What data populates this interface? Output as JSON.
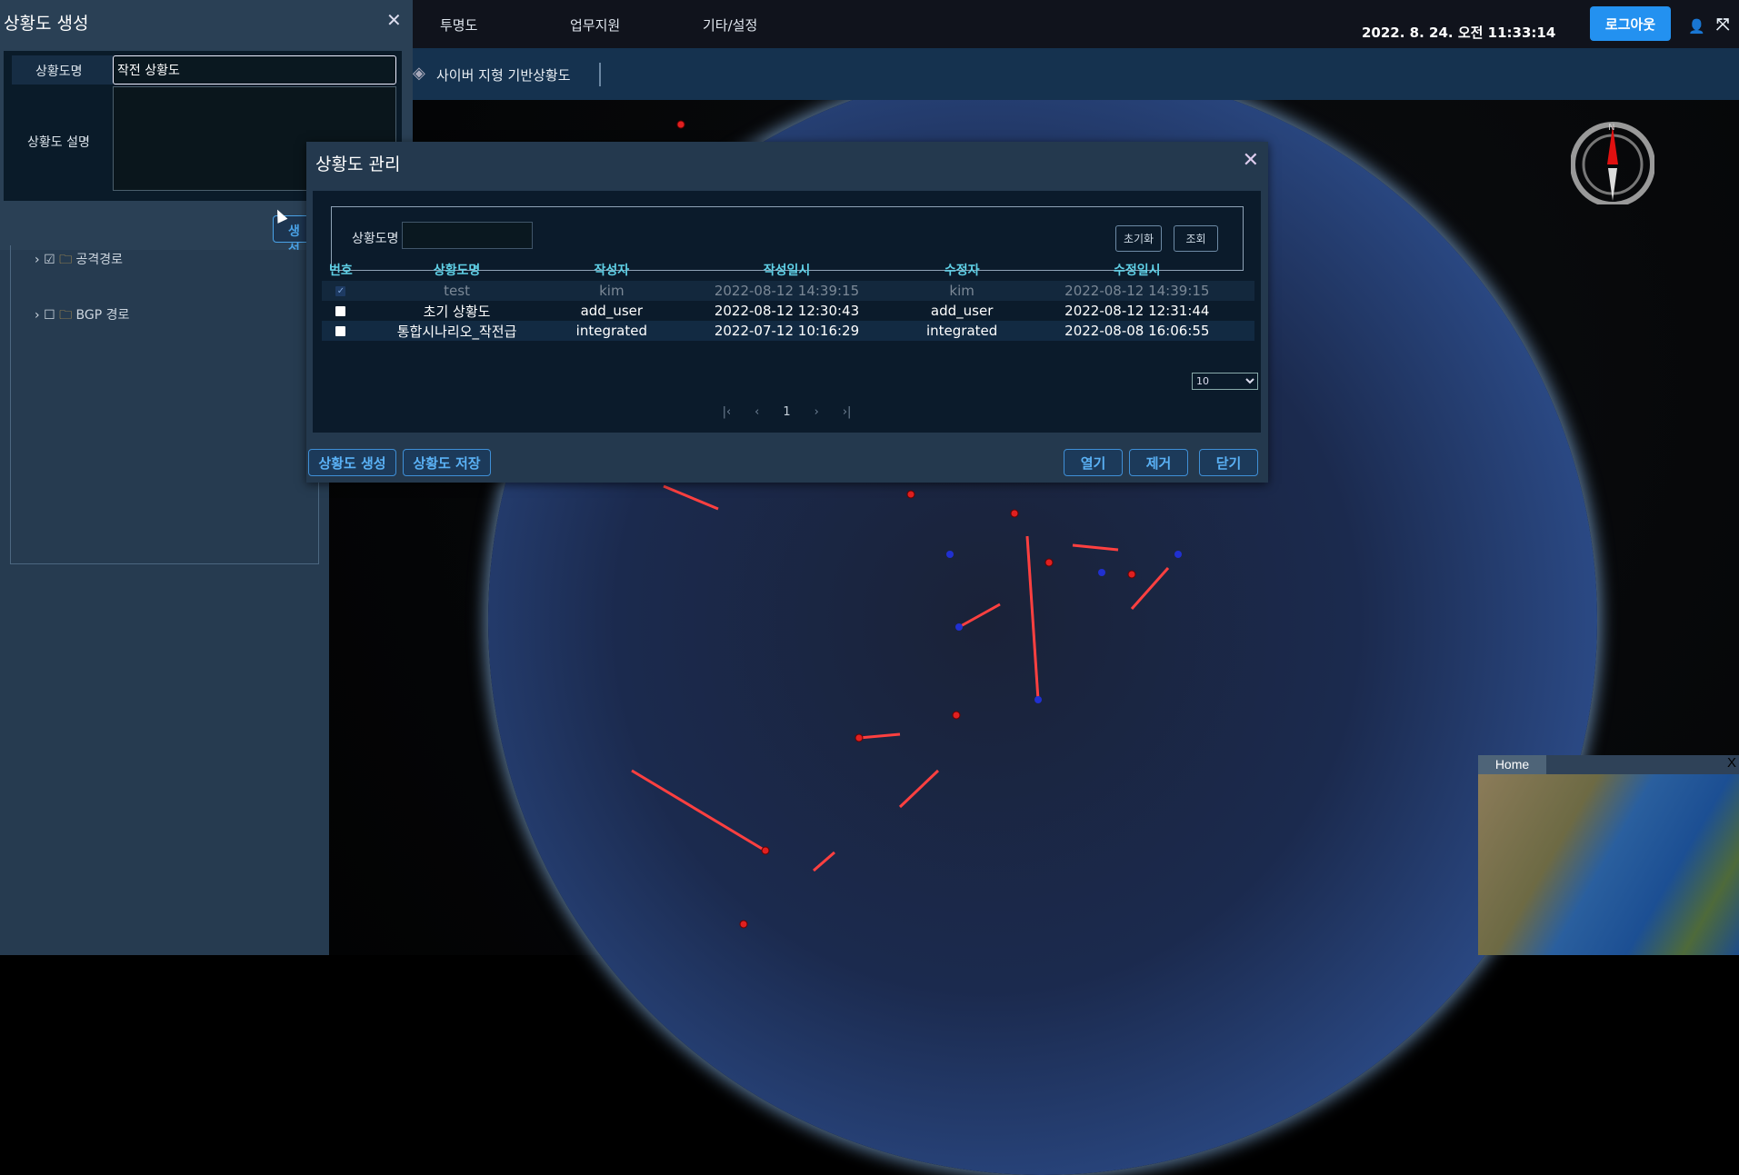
{
  "topbar": {
    "nav": [
      "투명도",
      "업무지원",
      "기타/설정"
    ],
    "datetime": "2022. 8. 24. 오전 11:33:14",
    "logout_label": "로그아웃"
  },
  "subbar": {
    "title": "사이버 지형 기반상황도"
  },
  "create_panel": {
    "title": "상황도 생성",
    "name_label": "상황도명",
    "name_value": "작전 상황도",
    "desc_label": "상황도 설명",
    "desc_value": "",
    "create_button": "생성"
  },
  "tree": {
    "items": [
      {
        "label": "공격경로",
        "checked": true
      },
      {
        "label": "BGP 경로",
        "checked": false
      }
    ]
  },
  "modal": {
    "title": "상황도 관리",
    "search_label": "상황도명",
    "search_value": "",
    "reset_label": "초기화",
    "search_button": "조회",
    "columns": [
      "번호",
      "상황도명",
      "작성자",
      "작성일시",
      "수정자",
      "수정일시"
    ],
    "rows": [
      {
        "name": "test",
        "author": "kim",
        "created": "2022-08-12 14:39:15",
        "modifier": "kim",
        "modified": "2022-08-12 14:39:15",
        "checked": true
      },
      {
        "name": "초기 상황도",
        "author": "add_user",
        "created": "2022-08-12 12:30:43",
        "modifier": "add_user",
        "modified": "2022-08-12 12:31:44",
        "checked": false
      },
      {
        "name": "통합시나리오_작전급",
        "author": "integrated",
        "created": "2022-07-12 10:16:29",
        "modifier": "integrated",
        "modified": "2022-08-08 16:06:55",
        "checked": false
      }
    ],
    "page_size": "10",
    "current_page": "1",
    "buttons": {
      "create": "상황도 생성",
      "save": "상황도 저장",
      "open": "열기",
      "remove": "제거",
      "close": "닫기"
    }
  },
  "minimap": {
    "tab": "Home",
    "close": "X"
  },
  "compass": {
    "north": "N"
  },
  "colors": {
    "accent": "#2391f0",
    "header_text": "#5fd0e6",
    "attack_line": "#ff3030"
  }
}
